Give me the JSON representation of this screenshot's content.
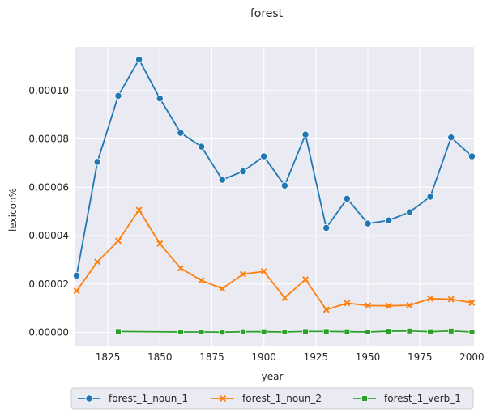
{
  "chart_data": {
    "type": "line",
    "title": "forest",
    "xlabel": "year",
    "ylabel": "lexicon%",
    "xlim": [
      1809,
      2001
    ],
    "ylim": [
      -5.5e-06,
      0.000118
    ],
    "x_ticks": [
      1825,
      1850,
      1875,
      1900,
      1925,
      1950,
      1975,
      2000
    ],
    "x_tick_labels": [
      "1825",
      "1850",
      "1875",
      "1900",
      "1925",
      "1950",
      "1975",
      "2000"
    ],
    "y_ticks": [
      0,
      2e-05,
      4e-05,
      6e-05,
      8e-05,
      0.0001
    ],
    "y_tick_labels": [
      "0.00000",
      "0.00002",
      "0.00004",
      "0.00006",
      "0.00008",
      "0.00010"
    ],
    "grid": true,
    "background": "#eaeaf2",
    "legend_position": "bottom-center",
    "series": [
      {
        "name": "forest_1_noun_1",
        "color": "#1f77b4",
        "marker": "circle",
        "x": [
          1810,
          1820,
          1830,
          1840,
          1850,
          1860,
          1870,
          1880,
          1890,
          1900,
          1910,
          1920,
          1930,
          1940,
          1950,
          1960,
          1970,
          1980,
          1990,
          2000
        ],
        "values": [
          2.35e-05,
          7.05e-05,
          9.78e-05,
          0.0001128,
          9.67e-05,
          8.25e-05,
          7.68e-05,
          6.31e-05,
          6.66e-05,
          7.28e-05,
          6.07e-05,
          8.18e-05,
          4.32e-05,
          5.53e-05,
          4.5e-05,
          4.63e-05,
          4.97e-05,
          5.61e-05,
          8.06e-05,
          7.28e-05
        ]
      },
      {
        "name": "forest_1_noun_2",
        "color": "#ff7f0e",
        "marker": "x",
        "x": [
          1810,
          1820,
          1830,
          1840,
          1850,
          1860,
          1870,
          1880,
          1890,
          1900,
          1910,
          1920,
          1930,
          1940,
          1950,
          1960,
          1970,
          1980,
          1990,
          2000
        ],
        "values": [
          1.72e-05,
          2.92e-05,
          3.79e-05,
          5.06e-05,
          3.67e-05,
          2.65e-05,
          2.15e-05,
          1.81e-05,
          2.41e-05,
          2.52e-05,
          1.43e-05,
          2.19e-05,
          9.4e-06,
          1.21e-05,
          1.11e-05,
          1.1e-05,
          1.12e-05,
          1.4e-05,
          1.37e-05,
          1.23e-05
        ]
      },
      {
        "name": "forest_1_verb_1",
        "color": "#2ca02c",
        "marker": "square",
        "x": [
          1830,
          1860,
          1870,
          1880,
          1890,
          1900,
          1910,
          1920,
          1930,
          1940,
          1950,
          1960,
          1970,
          1980,
          1990,
          2000
        ],
        "values": [
          4e-07,
          2e-07,
          2e-07,
          1e-07,
          3e-07,
          3e-07,
          2e-07,
          4e-07,
          4e-07,
          3e-07,
          2e-07,
          5e-07,
          6e-07,
          3e-07,
          6e-07,
          2e-07
        ]
      }
    ]
  }
}
